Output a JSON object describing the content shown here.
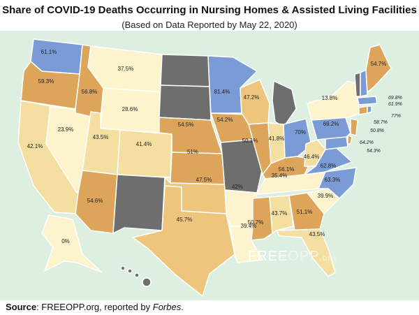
{
  "title": "Share of COVID-19 Deaths Occurring in Nursing Homes & Assisted Living Facilities",
  "subtitle": "(Based on Data Reported by May 22, 2020)",
  "source": {
    "label": "Source",
    "text": ":  FREEOPP.org, reported by ",
    "outlet": "Forbes",
    "end": "."
  },
  "logo": {
    "part1": "FREE",
    "part2": "OPP",
    "part3": ".org"
  },
  "colors": {
    "no_data": "#6e6e6e",
    "low": "#fdf3cc",
    "mid_low": "#f5dfa0",
    "mid": "#edc57c",
    "high": "#dda55a",
    "very_high": "#7b9bd6",
    "water": "#dcefe0"
  },
  "states": [
    {
      "state": "WA",
      "value": "61.1%"
    },
    {
      "state": "OR",
      "value": "59.3%"
    },
    {
      "state": "CA",
      "value": "42.1%"
    },
    {
      "state": "NV",
      "value": "23.9%"
    },
    {
      "state": "ID",
      "value": "56.8%"
    },
    {
      "state": "MT",
      "value": "37.5%"
    },
    {
      "state": "WY",
      "value": "28.6%"
    },
    {
      "state": "UT",
      "value": "43.5%"
    },
    {
      "state": "AZ",
      "value": "54.6%"
    },
    {
      "state": "CO",
      "value": "41.4%"
    },
    {
      "state": "NE",
      "value": "54.5%"
    },
    {
      "state": "KS",
      "value": "51%"
    },
    {
      "state": "OK",
      "value": "47.5%"
    },
    {
      "state": "TX",
      "value": "45.7%"
    },
    {
      "state": "MN",
      "value": "81.4%"
    },
    {
      "state": "IA",
      "value": "54.2%"
    },
    {
      "state": "AR",
      "value": "42%"
    },
    {
      "state": "LA",
      "value": "39.4%"
    },
    {
      "state": "WI",
      "value": "47.2%"
    },
    {
      "state": "IL",
      "value": "50.1%"
    },
    {
      "state": "IN",
      "value": "41.8%"
    },
    {
      "state": "OH",
      "value": "70%"
    },
    {
      "state": "KY",
      "value": "56.1%"
    },
    {
      "state": "TN",
      "value": "35.4%"
    },
    {
      "state": "MS",
      "value": "50.7%"
    },
    {
      "state": "AL",
      "value": "43.7%"
    },
    {
      "state": "GA",
      "value": "51.1%"
    },
    {
      "state": "FL",
      "value": "43.5%"
    },
    {
      "state": "SC",
      "value": "39.9%"
    },
    {
      "state": "NC",
      "value": "63.3%"
    },
    {
      "state": "WV",
      "value": "46.4%"
    },
    {
      "state": "VA",
      "value": "62.8%"
    },
    {
      "state": "PA",
      "value": "69.2%"
    },
    {
      "state": "NY",
      "value": "13.8%"
    },
    {
      "state": "ME",
      "value": "54.7%"
    },
    {
      "state": "AK",
      "value": "0%"
    }
  ],
  "callouts": [
    {
      "value": "69.8%"
    },
    {
      "value": "61.9%"
    },
    {
      "value": "77%"
    },
    {
      "value": "58.7%"
    },
    {
      "value": "50.8%"
    },
    {
      "value": "64.2%"
    },
    {
      "value": "54.3%"
    }
  ]
}
